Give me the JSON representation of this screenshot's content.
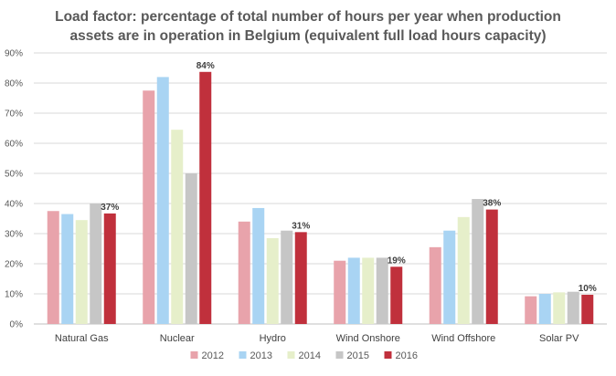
{
  "chart_data": {
    "type": "bar",
    "title_lines": [
      "Load factor: percentage of total number of hours per year when production",
      "assets are in operation in Belgium (equivalent full load hours capacity)"
    ],
    "categories": [
      "Natural Gas",
      "Nuclear",
      "Hydro",
      "Wind Onshore",
      "Wind Offshore",
      "Solar PV"
    ],
    "series": [
      {
        "name": "2012",
        "color": "#e8a3ab",
        "values": [
          37.5,
          77.5,
          34,
          21,
          25.5,
          9.2
        ]
      },
      {
        "name": "2013",
        "color": "#a9d4f3",
        "values": [
          36.5,
          82,
          38.5,
          22,
          31,
          10
        ]
      },
      {
        "name": "2014",
        "color": "#e6efca",
        "values": [
          34.5,
          64.5,
          28.5,
          22,
          35.5,
          10.5
        ]
      },
      {
        "name": "2015",
        "color": "#c6c6c6",
        "values": [
          40,
          50,
          31,
          22,
          41.5,
          10.7
        ]
      },
      {
        "name": "2016",
        "color": "#c0303c",
        "values": [
          36.7,
          83.7,
          30.5,
          19,
          38,
          9.7
        ]
      }
    ],
    "data_labels": {
      "series": "2016",
      "labels": [
        "37%",
        "84%",
        "31%",
        "19%",
        "38%",
        "10%"
      ]
    },
    "yticks": [
      "0%",
      "10%",
      "20%",
      "30%",
      "40%",
      "50%",
      "60%",
      "70%",
      "80%",
      "90%"
    ],
    "ylim": [
      0,
      90
    ],
    "grid": true,
    "legend_position": "bottom"
  }
}
